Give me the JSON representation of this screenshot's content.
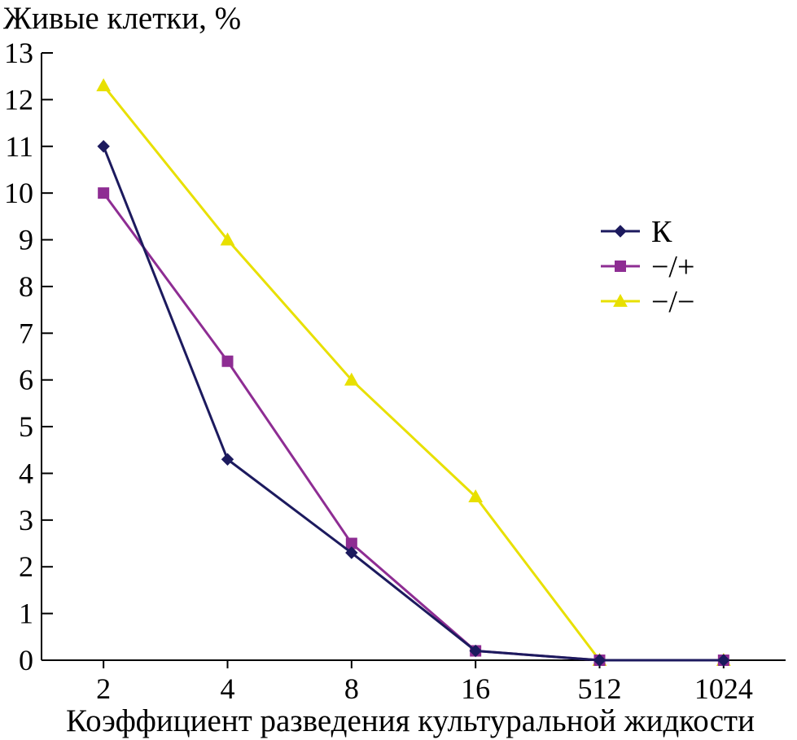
{
  "chart_data": {
    "type": "line",
    "ylabel": "Живые клетки, %",
    "xlabel": "Коэффициент разведения культуральной жидкости",
    "categories": [
      "2",
      "4",
      "8",
      "16",
      "512",
      "1024"
    ],
    "ylim": [
      0,
      13
    ],
    "yticks": [
      0,
      1,
      2,
      3,
      4,
      5,
      6,
      7,
      8,
      9,
      10,
      11,
      12,
      13
    ],
    "grid": false,
    "legend": "right-middle",
    "series": [
      {
        "name": "К",
        "marker": "diamond",
        "color": "#1c1a5e",
        "values": [
          11,
          4.3,
          2.3,
          0.2,
          0,
          0
        ]
      },
      {
        "name": "−/+",
        "marker": "square",
        "color": "#8e2d93",
        "values": [
          10,
          6.4,
          2.5,
          0.2,
          0,
          0
        ]
      },
      {
        "name": "−/−",
        "marker": "triangle",
        "color": "#e8e000",
        "values": [
          12.3,
          9.0,
          6.0,
          3.5,
          0,
          0
        ]
      }
    ]
  }
}
